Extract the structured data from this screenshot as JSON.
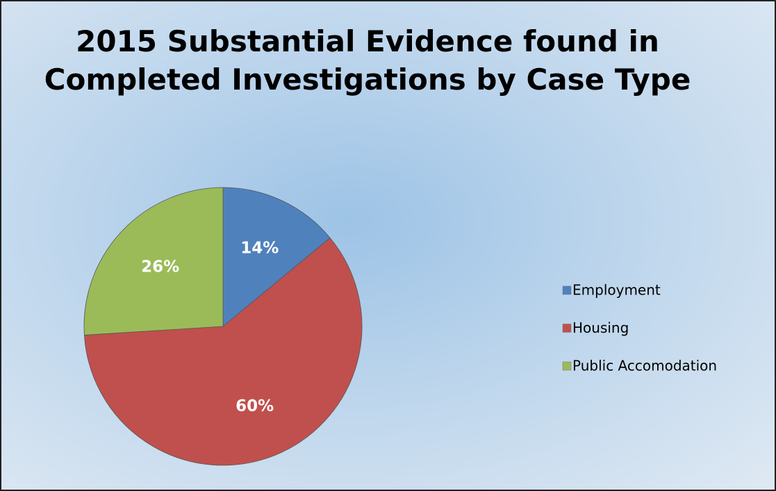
{
  "chart_data": {
    "type": "pie",
    "title": "2015 Substantial Evidence found in Completed Investigations by Case Type",
    "categories": [
      "Employment",
      "Housing",
      "Public Accomodation"
    ],
    "values": [
      14,
      60,
      26
    ],
    "value_labels": [
      "14%",
      "60%",
      "26%"
    ],
    "colors": [
      "#4f81bd",
      "#c0504d",
      "#9bbb59"
    ],
    "legend": "right"
  }
}
